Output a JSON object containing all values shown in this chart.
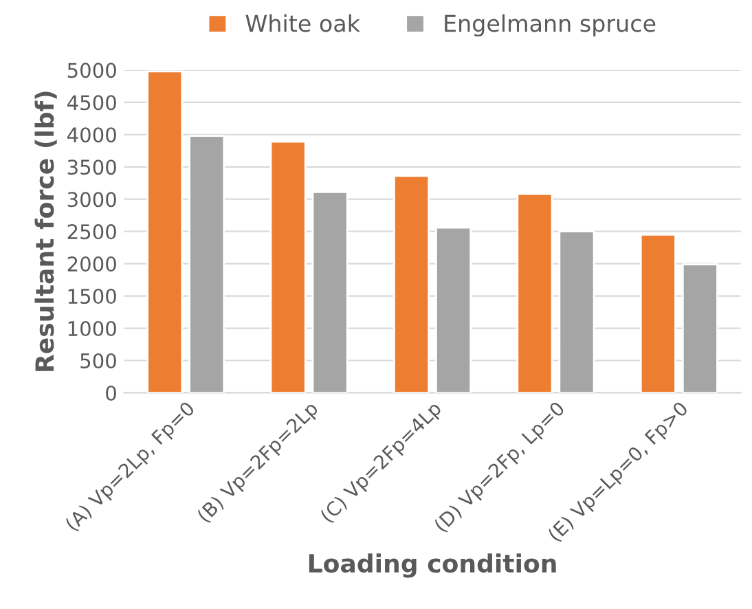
{
  "chart_data": {
    "type": "bar",
    "xlabel": "Loading condition",
    "ylabel": "Resultant force (lbf)",
    "categories": [
      "(A) Vp=2Lp, Fp=0",
      "(B) Vp=2Fp=2Lp",
      "(C) Vp=2Fp=4Lp",
      "(D) Vp=2Fp, Lp=0",
      "(E) Vp=Lp=0, Fp>0"
    ],
    "series": [
      {
        "name": "White oak",
        "color": "#ed7d31",
        "values": [
          4980,
          3890,
          3360,
          3080,
          2450
        ]
      },
      {
        "name": "Engelmann spruce",
        "color": "#a5a5a5",
        "values": [
          3980,
          3110,
          2560,
          2500,
          1990
        ]
      }
    ],
    "ylim": [
      0,
      5000
    ],
    "yticks": [
      0,
      500,
      1000,
      1500,
      2000,
      2500,
      3000,
      3500,
      4000,
      4500,
      5000
    ],
    "grid": "y",
    "legend": "top"
  }
}
